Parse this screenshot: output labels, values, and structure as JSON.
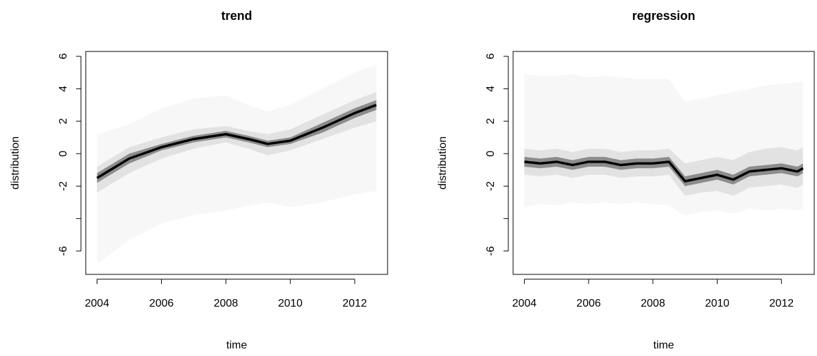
{
  "chart_data": [
    {
      "type": "fan",
      "title": "trend",
      "xlabel": "time",
      "ylabel": "distribution",
      "xlim": [
        2003.65,
        2013.02
      ],
      "ylim": [
        -7.44,
        6.3
      ],
      "xticks": [
        2004,
        2006,
        2008,
        2010,
        2012
      ],
      "yticks": [
        -6,
        {
          "value": -4,
          "label": null
        },
        -2,
        0,
        2,
        4,
        6
      ],
      "x": [
        2004,
        2005,
        2006,
        2007,
        2008,
        2008.7,
        2009.3,
        2010,
        2011,
        2012,
        2012.67
      ],
      "bands": [
        {
          "color": "#f7f7f7",
          "upper": [
            1.2,
            1.8,
            2.8,
            3.4,
            3.6,
            3.0,
            2.6,
            3.0,
            4.0,
            5.0,
            5.5
          ],
          "lower": [
            -6.8,
            -5.3,
            -4.3,
            -3.8,
            -3.5,
            -3.2,
            -3.0,
            -3.3,
            -3.0,
            -2.5,
            -2.3
          ]
        },
        {
          "color": "#e2e2e2",
          "upper": [
            -0.8,
            0.4,
            1.0,
            1.5,
            1.7,
            1.4,
            1.2,
            1.5,
            2.4,
            3.3,
            3.8
          ],
          "lower": [
            -2.4,
            -1.2,
            -0.3,
            0.3,
            0.7,
            0.3,
            -0.1,
            0.2,
            0.9,
            1.6,
            2.0
          ]
        },
        {
          "color": "#8c8c8c",
          "upper": [
            -1.2,
            0.0,
            0.6,
            1.1,
            1.4,
            1.1,
            0.8,
            1.0,
            1.9,
            2.8,
            3.3
          ],
          "lower": [
            -1.8,
            -0.6,
            0.2,
            0.7,
            1.0,
            0.7,
            0.4,
            0.6,
            1.3,
            2.2,
            2.7
          ]
        }
      ],
      "series": [
        {
          "color": "#000000",
          "values": [
            -1.5,
            -0.3,
            0.4,
            0.9,
            1.2,
            0.9,
            0.6,
            0.8,
            1.6,
            2.5,
            3.0
          ]
        }
      ]
    },
    {
      "type": "fan",
      "title": "regression",
      "xlabel": "time",
      "ylabel": "distribution",
      "xlim": [
        2003.65,
        2013.02
      ],
      "ylim": [
        -7.44,
        6.3
      ],
      "xticks": [
        2004,
        2006,
        2008,
        2010,
        2012
      ],
      "yticks": [
        -6,
        {
          "value": -4,
          "label": null
        },
        -2,
        0,
        2,
        4,
        6
      ],
      "x": [
        2004,
        2004.5,
        2005,
        2005.5,
        2006,
        2006.5,
        2007,
        2007.5,
        2008,
        2008.5,
        2009,
        2009.5,
        2010,
        2010.5,
        2011,
        2011.5,
        2012,
        2012.5,
        2012.67
      ],
      "bands": [
        {
          "color": "#f7f7f7",
          "upper": [
            4.9,
            4.8,
            4.8,
            4.9,
            4.7,
            4.8,
            4.7,
            4.6,
            4.6,
            4.6,
            3.2,
            3.4,
            3.6,
            3.8,
            4.0,
            4.2,
            4.3,
            4.4,
            4.5
          ],
          "lower": [
            -3.3,
            -3.1,
            -3.2,
            -3.0,
            -3.1,
            -3.0,
            -3.1,
            -3.0,
            -3.1,
            -3.2,
            -3.8,
            -3.6,
            -3.5,
            -3.7,
            -3.4,
            -3.5,
            -3.4,
            -3.5,
            -3.5
          ]
        },
        {
          "color": "#e2e2e2",
          "upper": [
            0.3,
            0.2,
            0.3,
            0.1,
            0.3,
            0.3,
            0.1,
            0.2,
            0.2,
            0.3,
            -0.6,
            -0.4,
            -0.2,
            -0.4,
            0.1,
            0.3,
            0.4,
            0.2,
            0.4
          ],
          "lower": [
            -1.3,
            -1.4,
            -1.3,
            -1.5,
            -1.3,
            -1.3,
            -1.5,
            -1.4,
            -1.4,
            -1.3,
            -2.6,
            -2.4,
            -2.3,
            -2.6,
            -2.1,
            -2.0,
            -1.9,
            -2.1,
            -1.9
          ]
        },
        {
          "color": "#8c8c8c",
          "upper": [
            -0.2,
            -0.3,
            -0.2,
            -0.4,
            -0.2,
            -0.2,
            -0.4,
            -0.3,
            -0.3,
            -0.2,
            -1.4,
            -1.2,
            -1.0,
            -1.3,
            -0.8,
            -0.7,
            -0.6,
            -0.8,
            -0.6
          ],
          "lower": [
            -0.8,
            -0.9,
            -0.8,
            -1.0,
            -0.8,
            -0.8,
            -1.0,
            -0.9,
            -0.9,
            -0.8,
            -2.0,
            -1.8,
            -1.6,
            -1.9,
            -1.4,
            -1.3,
            -1.2,
            -1.4,
            -1.2
          ]
        }
      ],
      "series": [
        {
          "color": "#000000",
          "values": [
            -0.5,
            -0.6,
            -0.5,
            -0.7,
            -0.5,
            -0.5,
            -0.7,
            -0.6,
            -0.6,
            -0.5,
            -1.7,
            -1.5,
            -1.3,
            -1.6,
            -1.1,
            -1.0,
            -0.9,
            -1.1,
            -0.9
          ]
        }
      ]
    }
  ]
}
